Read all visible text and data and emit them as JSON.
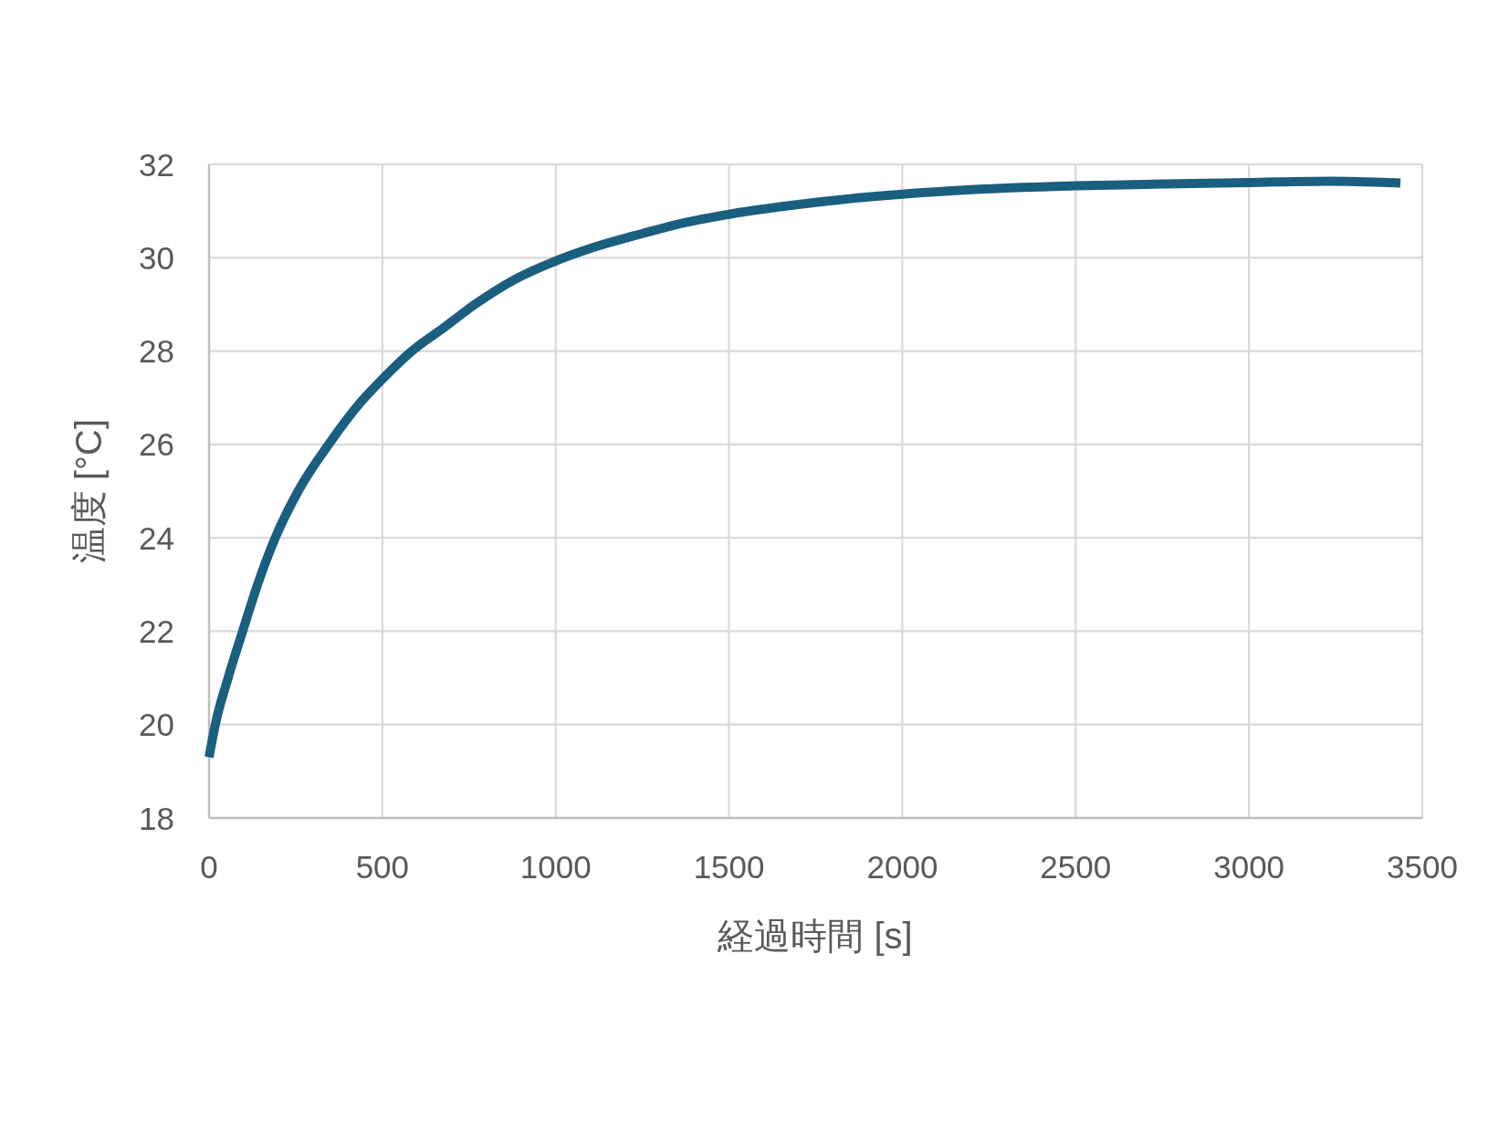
{
  "chart_data": {
    "type": "line",
    "xlabel": "経過時間 [s]",
    "ylabel": "温度 [°C]",
    "x": [
      0,
      18,
      55,
      97,
      140,
      191,
      257,
      345,
      437,
      500,
      585,
      675,
      767,
      881,
      1000,
      1109,
      1241,
      1373,
      1500,
      1637,
      1766,
      2000,
      2235,
      2500,
      2762,
      3000,
      3232,
      3437
    ],
    "series": [
      {
        "color": "#1a5e80",
        "values": [
          19.3,
          20.0,
          21.0,
          22.0,
          23.0,
          24.0,
          25.0,
          26.0,
          26.9,
          27.4,
          28.0,
          28.49,
          29.0,
          29.53,
          29.93,
          30.22,
          30.5,
          30.75,
          30.93,
          31.08,
          31.2,
          31.36,
          31.47,
          31.54,
          31.58,
          31.61,
          31.64,
          31.6
        ]
      }
    ],
    "xlim": [
      0,
      3500
    ],
    "ylim": [
      18,
      32
    ],
    "xticks": [
      0,
      500,
      1000,
      1500,
      2000,
      2500,
      3000,
      3500
    ],
    "yticks": [
      18,
      20,
      22,
      24,
      26,
      28,
      30,
      32
    ],
    "grid": true,
    "line_style": "solid"
  }
}
